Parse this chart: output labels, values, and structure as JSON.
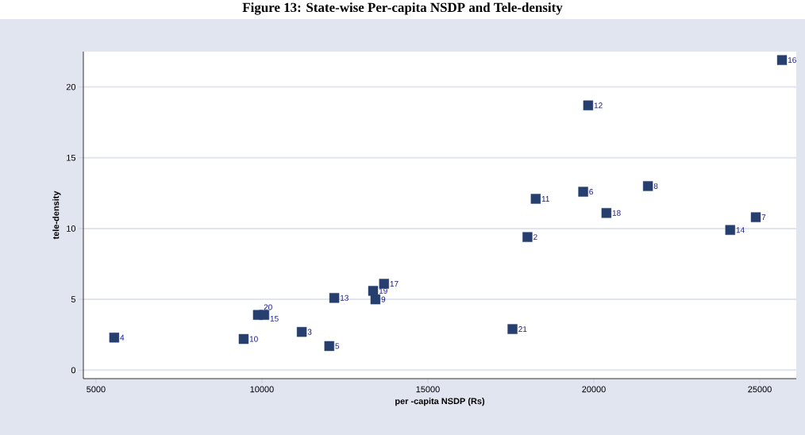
{
  "chart_data": {
    "type": "scatter",
    "title": "Figure 13: State-wise Per-capita NSDP and Tele-density",
    "xlabel": "per -capita NSDP (Rs)",
    "ylabel": "tele-density",
    "x": [
      5550,
      9450,
      9880,
      10070,
      11200,
      12030,
      12180,
      13350,
      13420,
      13680,
      17550,
      18000,
      18250,
      19680,
      19830,
      20380,
      21630,
      24110,
      24880,
      25670
    ],
    "series": [
      {
        "color": "#263f6e",
        "values": [
          2.3,
          2.2,
          3.9,
          3.9,
          2.7,
          1.7,
          5.1,
          5.6,
          5.0,
          6.1,
          2.9,
          9.4,
          12.1,
          12.6,
          18.7,
          11.1,
          13.0,
          9.9,
          10.8,
          21.9
        ]
      }
    ],
    "annotations": [
      {
        "text": "4",
        "x": 5550,
        "y": 2.3
      },
      {
        "text": "10",
        "x": 9450,
        "y": 2.2
      },
      {
        "text": "20",
        "x": 9880,
        "y": 3.9
      },
      {
        "text": "15",
        "x": 10070,
        "y": 3.9
      },
      {
        "text": "3",
        "x": 11200,
        "y": 2.7
      },
      {
        "text": "5",
        "x": 12030,
        "y": 1.7
      },
      {
        "text": "13",
        "x": 12180,
        "y": 5.1
      },
      {
        "text": "19",
        "x": 13350,
        "y": 5.6
      },
      {
        "text": "9",
        "x": 13420,
        "y": 5.0
      },
      {
        "text": "17",
        "x": 13680,
        "y": 6.1
      },
      {
        "text": "21",
        "x": 17550,
        "y": 2.9
      },
      {
        "text": "2",
        "x": 18000,
        "y": 9.4
      },
      {
        "text": "11",
        "x": 18250,
        "y": 12.1
      },
      {
        "text": "6",
        "x": 19680,
        "y": 12.6
      },
      {
        "text": "12",
        "x": 19830,
        "y": 18.7
      },
      {
        "text": "18",
        "x": 20380,
        "y": 11.1
      },
      {
        "text": "8",
        "x": 21630,
        "y": 13.0
      },
      {
        "text": "14",
        "x": 24110,
        "y": 9.9
      },
      {
        "text": "7",
        "x": 24880,
        "y": 10.8
      },
      {
        "text": "16",
        "x": 25670,
        "y": 21.9
      }
    ],
    "xlim": [
      4620,
      26100
    ],
    "ylim": [
      -0.6,
      22.5
    ],
    "xticks": [
      5000,
      10000,
      15000,
      20000,
      25000
    ],
    "yticks": [
      0,
      5,
      10,
      15,
      20
    ],
    "grid": "y",
    "marker": "square"
  }
}
